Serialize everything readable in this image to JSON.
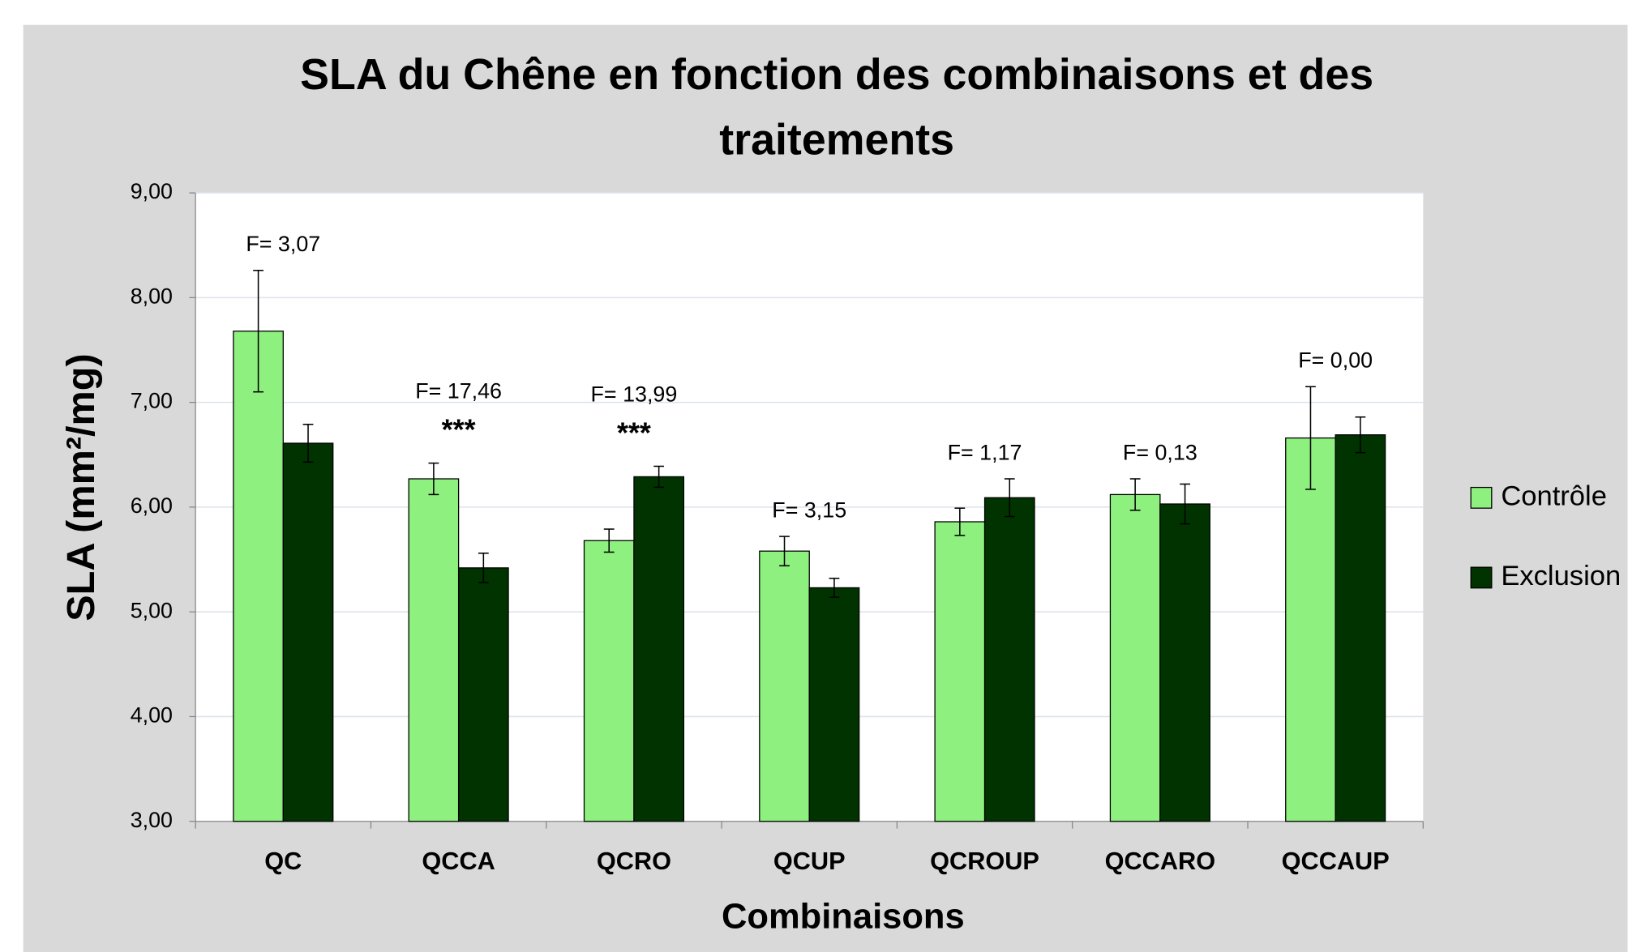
{
  "chart_data": {
    "type": "bar",
    "title": "SLA du Chêne en fonction des combinaisons et des traitements",
    "x_label": "Combinaisons",
    "y_label": "SLA (mm²/mg)",
    "categories": [
      "QC",
      "QCCA",
      "QCRO",
      "QCUP",
      "QCROUP",
      "QCCARO",
      "QCCAUP"
    ],
    "series": [
      {
        "name": "Contrôle",
        "color": "#8ef07e",
        "values": [
          7.68,
          6.27,
          5.68,
          5.58,
          5.86,
          6.12,
          6.66
        ],
        "errors": [
          0.58,
          0.15,
          0.11,
          0.14,
          0.13,
          0.15,
          0.49
        ]
      },
      {
        "name": "Exclusion",
        "color": "#003300",
        "values": [
          6.61,
          5.42,
          6.29,
          5.23,
          6.09,
          6.03,
          6.69
        ],
        "errors": [
          0.18,
          0.14,
          0.1,
          0.09,
          0.18,
          0.19,
          0.17
        ]
      }
    ],
    "f_labels": [
      "F= 3,07",
      "F= 17,46",
      "F= 13,99",
      "F= 3,15",
      "F= 1,17",
      "F= 0,13",
      "F= 0,00"
    ],
    "significance": [
      null,
      "***",
      "***",
      null,
      null,
      null,
      null
    ],
    "ylim": [
      3,
      9
    ],
    "yticks": [
      {
        "value": 3,
        "label": "3,00"
      },
      {
        "value": 4,
        "label": "4,00"
      },
      {
        "value": 5,
        "label": "5,00"
      },
      {
        "value": 6,
        "label": "6,00"
      },
      {
        "value": 7,
        "label": "7,00"
      },
      {
        "value": 8,
        "label": "8,00"
      },
      {
        "value": 9,
        "label": "9,00"
      }
    ],
    "grid": true,
    "legend": "right"
  }
}
